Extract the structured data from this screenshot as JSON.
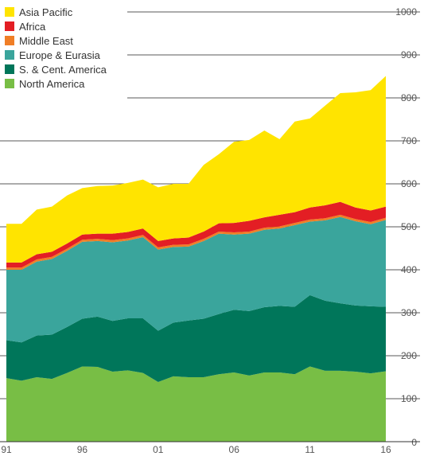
{
  "chart_data": {
    "type": "area",
    "stacked": true,
    "x": [
      1991,
      1992,
      1993,
      1994,
      1995,
      1996,
      1997,
      1998,
      1999,
      2000,
      2001,
      2002,
      2003,
      2004,
      2005,
      2006,
      2007,
      2008,
      2009,
      2010,
      2011,
      2012,
      2013,
      2014,
      2015,
      2016
    ],
    "xtick_labels": [
      "91",
      "96",
      "01",
      "06",
      "11",
      "16"
    ],
    "ytick_labels": [
      "0",
      "100",
      "200",
      "300",
      "400",
      "500",
      "600",
      "700",
      "800",
      "900",
      "1000"
    ],
    "ylim": [
      0,
      1000
    ],
    "legend_position": "top-left",
    "grid": "partial horizontal",
    "series": [
      {
        "name": "North America",
        "color": "#78BE45",
        "values": [
          148,
          142,
          150,
          146,
          160,
          175,
          174,
          163,
          166,
          160,
          139,
          152,
          150,
          150,
          157,
          161,
          154,
          161,
          161,
          157,
          175,
          165,
          165,
          163,
          159,
          164
        ]
      },
      {
        "name": "S. & Cent. America",
        "color": "#00765A",
        "values": [
          88,
          89,
          97,
          103,
          107,
          111,
          117,
          118,
          121,
          127,
          119,
          125,
          132,
          136,
          140,
          146,
          150,
          152,
          155,
          157,
          166,
          163,
          157,
          154,
          156,
          150
        ]
      },
      {
        "name": "Europe & Eurasia",
        "color": "#3AA59C",
        "values": [
          164,
          169,
          172,
          176,
          177,
          179,
          176,
          183,
          181,
          189,
          189,
          176,
          172,
          181,
          187,
          175,
          180,
          180,
          180,
          190,
          171,
          187,
          201,
          196,
          191,
          202
        ]
      },
      {
        "name": "Middle East",
        "color": "#F07E26",
        "values": [
          5,
          5,
          5,
          5,
          5,
          5,
          5,
          5,
          5,
          5,
          5,
          5,
          5,
          5,
          5,
          5,
          5,
          5,
          5,
          5,
          5,
          5,
          5,
          5,
          5,
          5
        ]
      },
      {
        "name": "Africa",
        "color": "#E31E24",
        "values": [
          12,
          12,
          12,
          12,
          12,
          12,
          12,
          15,
          15,
          15,
          15,
          15,
          16,
          17,
          19,
          22,
          25,
          24,
          27,
          25,
          28,
          30,
          30,
          27,
          27,
          26
        ]
      },
      {
        "name": "Asia Pacific",
        "color": "#FFE400",
        "values": [
          90,
          90,
          104,
          105,
          112,
          108,
          111,
          112,
          114,
          114,
          125,
          127,
          125,
          155,
          161,
          189,
          188,
          202,
          176,
          211,
          207,
          232,
          253,
          268,
          280,
          304
        ]
      }
    ]
  }
}
